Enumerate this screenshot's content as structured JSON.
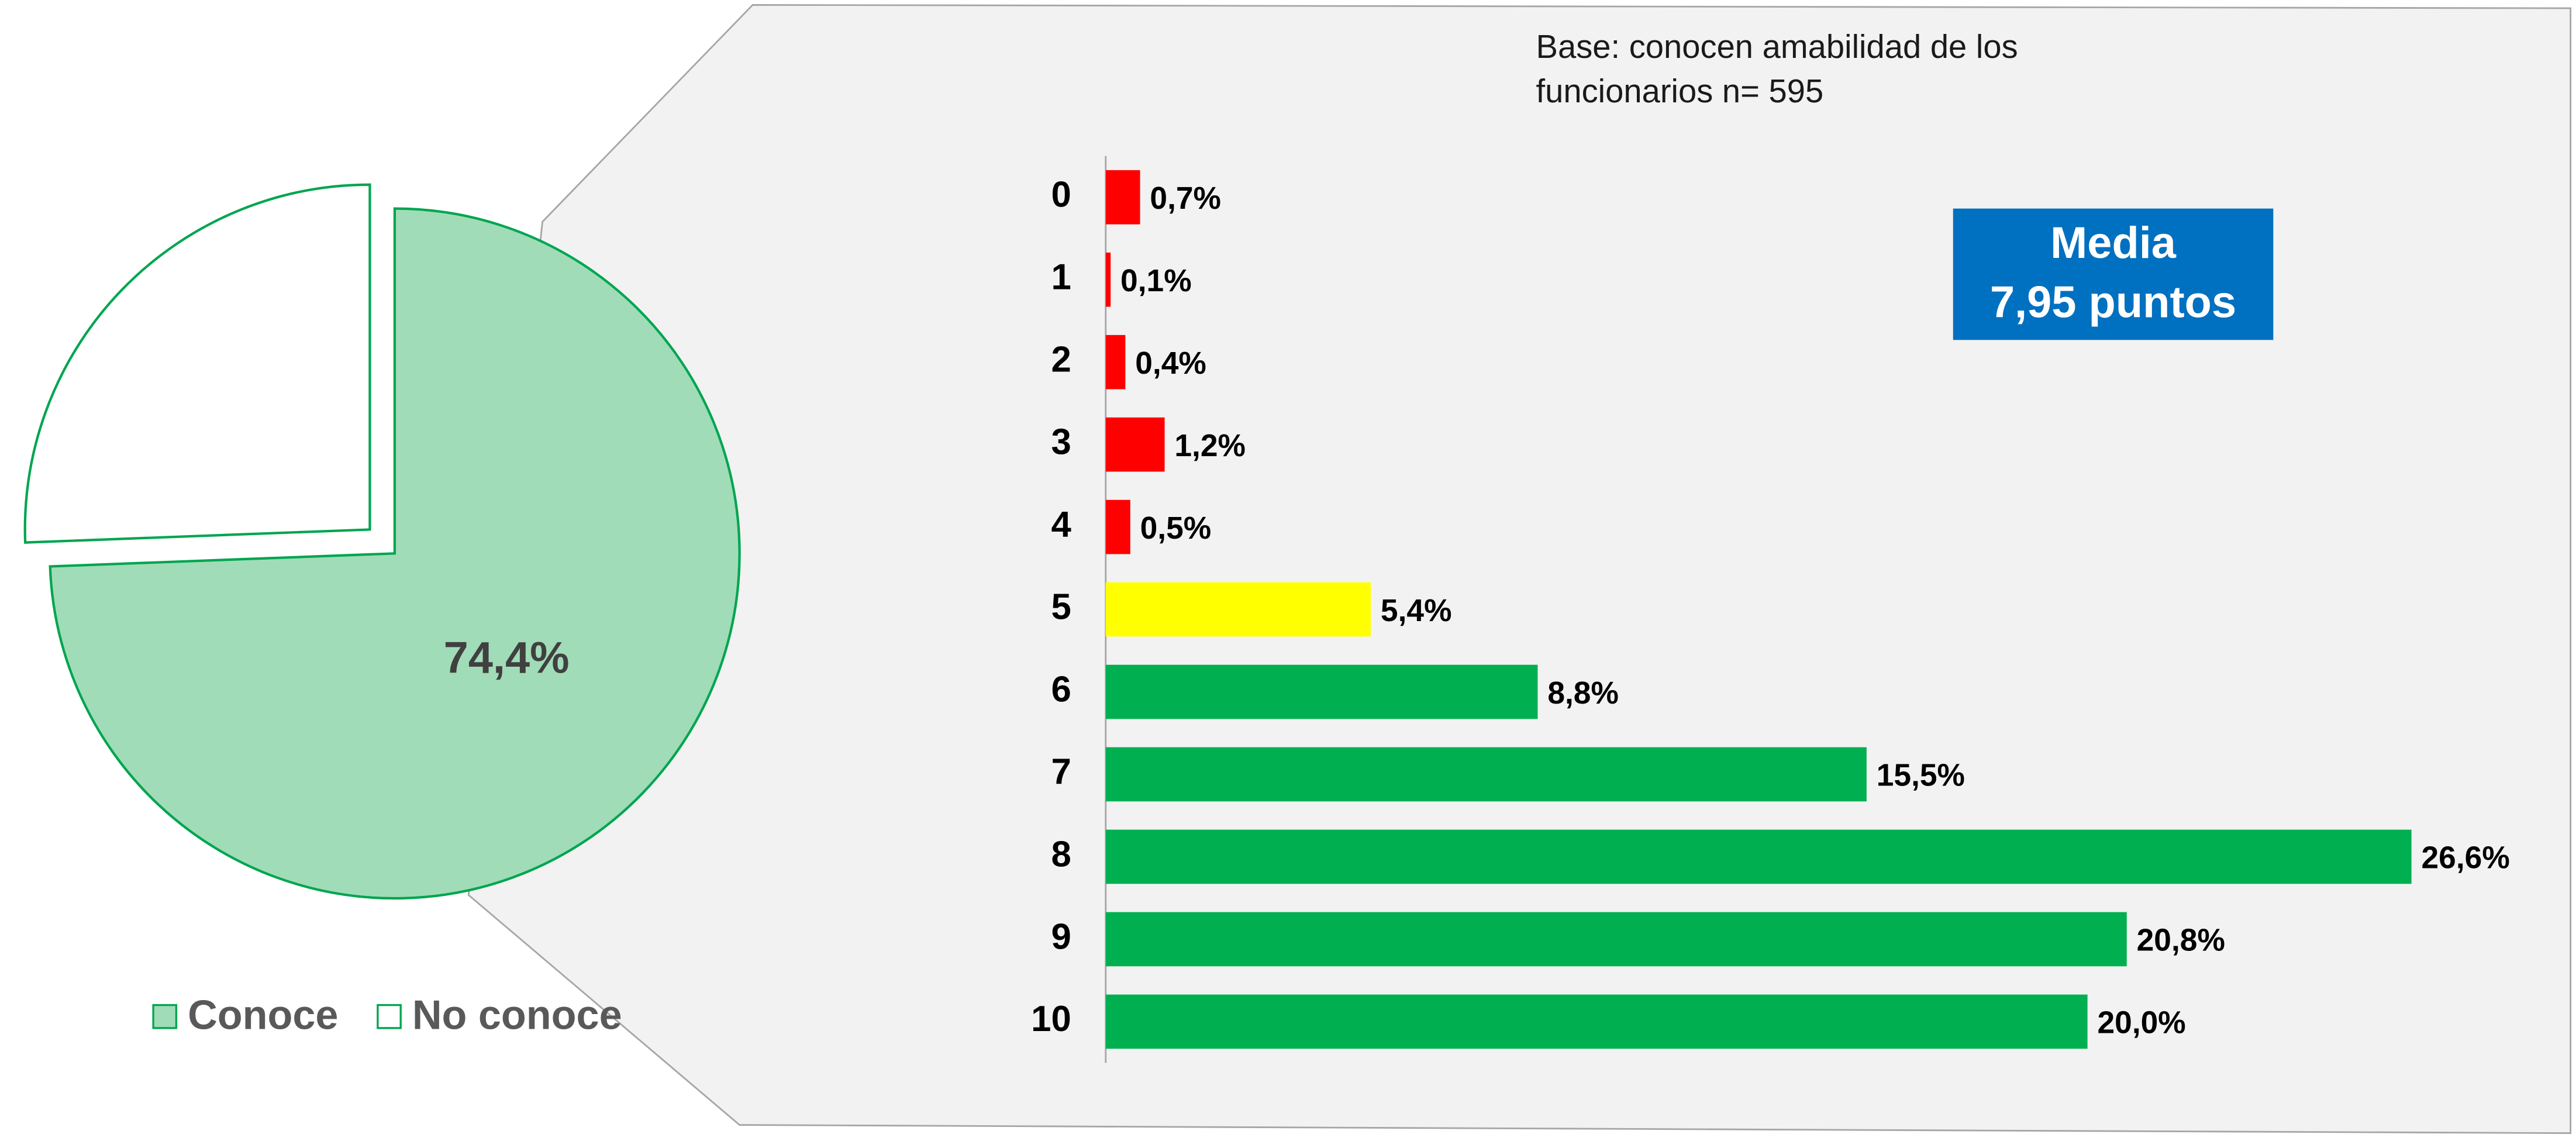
{
  "chart_data": [
    {
      "type": "pie",
      "categories": [
        "Conoce",
        "No conoce"
      ],
      "values": [
        74.4,
        25.6
      ],
      "value_labels": [
        "74,4%",
        null
      ],
      "colors": [
        "#a0dcb8",
        "#ffffff"
      ],
      "edge_color": "#00a550",
      "legend": "bottom"
    },
    {
      "type": "bar",
      "orientation": "horizontal",
      "note": [
        "Base: conocen amabilidad de los",
        "funcionarios n= 595"
      ],
      "annotation": [
        "Media",
        "7,95 puntos"
      ],
      "annotation_color": "#0070c0",
      "categories": [
        "0",
        "1",
        "2",
        "3",
        "4",
        "5",
        "6",
        "7",
        "8",
        "9",
        "10"
      ],
      "values": [
        0.7,
        0.1,
        0.4,
        1.2,
        0.5,
        5.4,
        8.8,
        15.5,
        26.6,
        20.8,
        20.0
      ],
      "value_labels": [
        "0,7%",
        "0,1%",
        "0,4%",
        "1,2%",
        "0,5%",
        "5,4%",
        "8,8%",
        "15,5%",
        "26,6%",
        "20,8%",
        "20,0%"
      ],
      "colors": [
        "#ff0000",
        "#ff0000",
        "#ff0000",
        "#ff0000",
        "#ff0000",
        "#ffff00",
        "#00b050",
        "#00b050",
        "#00b050",
        "#00b050",
        "#00b050"
      ],
      "xlim": [
        0,
        28
      ]
    }
  ]
}
